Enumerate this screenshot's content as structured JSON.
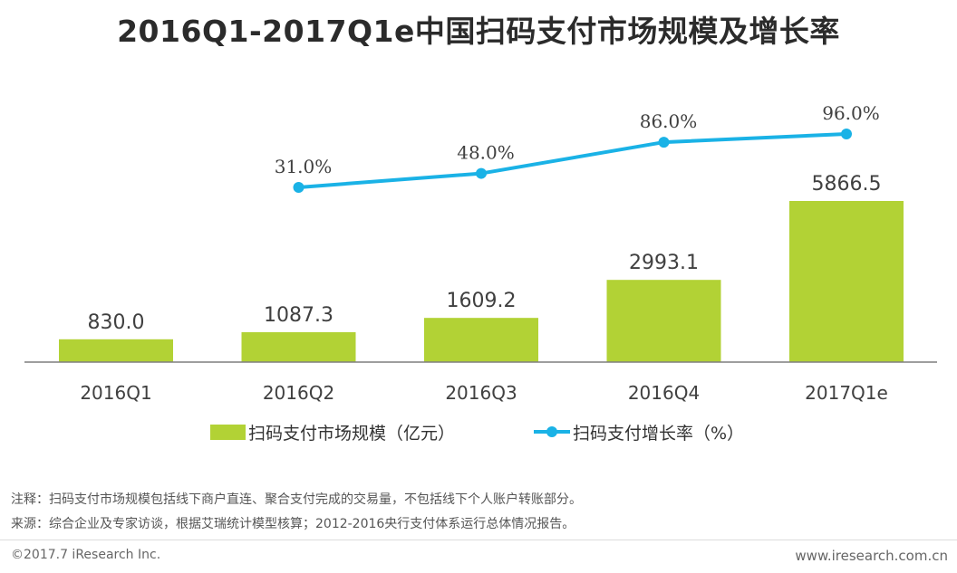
{
  "title": "2016Q1-2017Q1e中国扫码支付市场规模及增长率",
  "chart_data": {
    "type": "bar",
    "categories": [
      "2016Q1",
      "2016Q2",
      "2016Q3",
      "2016Q4",
      "2017Q1e"
    ],
    "series": [
      {
        "name": "扫码支付市场规模（亿元）",
        "type": "bar",
        "values": [
          830.0,
          1087.3,
          1609.2,
          2993.1,
          5866.5
        ],
        "labels": [
          "830.0",
          "1087.3",
          "1609.2",
          "2993.1",
          "5866.5"
        ],
        "color": "#b2d235"
      },
      {
        "name": "扫码支付增长率（%）",
        "type": "line",
        "values": [
          null,
          31.0,
          48.0,
          86.0,
          96.0
        ],
        "labels": [
          "",
          "31.0%",
          "48.0%",
          "86.0%",
          "96.0%"
        ],
        "color": "#1ab2e6"
      }
    ],
    "legend_position": "bottom"
  },
  "notes": {
    "note1": "注释：扫码支付市场规模包括线下商户直连、聚合支付完成的交易量，不包括线下个人账户转账部分。",
    "note2": "来源：综合企业及专家访谈，根据艾瑞统计模型核算；2012-2016央行支付体系运行总体情况报告。"
  },
  "footer": {
    "copyright": "©2017.7 iResearch Inc.",
    "site": "www.iresearch.com.cn"
  }
}
